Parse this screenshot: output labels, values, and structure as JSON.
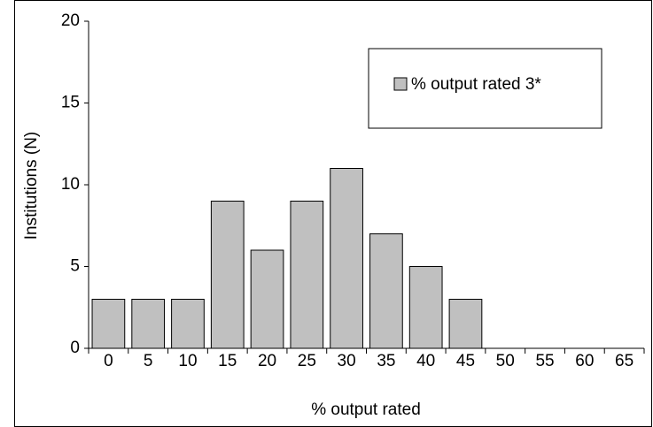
{
  "chart_data": {
    "type": "bar",
    "x_label": "% output rated",
    "y_label": "Institutions (N)",
    "categories": [
      "0",
      "5",
      "10",
      "15",
      "20",
      "25",
      "30",
      "35",
      "40",
      "45",
      "50",
      "55",
      "60",
      "65"
    ],
    "series": [
      {
        "name": "% output rated 3*",
        "color": "#c0c0c0",
        "values": [
          3,
          3,
          3,
          9,
          6,
          9,
          11,
          7,
          5,
          3,
          0,
          0,
          0,
          0
        ]
      }
    ],
    "ylim": [
      0,
      20
    ],
    "yticks": [
      0,
      5,
      10,
      15,
      20
    ],
    "grid": false,
    "legend": "upper right"
  }
}
